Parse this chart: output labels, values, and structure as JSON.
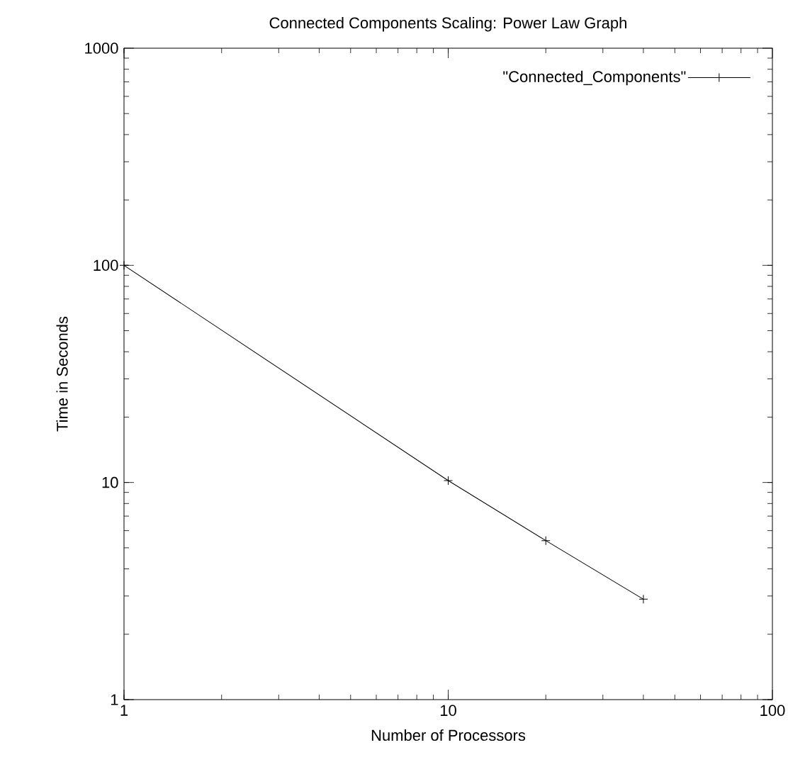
{
  "chart_data": {
    "type": "line",
    "title": "Connected Components Scaling: Power Law Graph",
    "xlabel": "Number of Processors",
    "ylabel": "Time in Seconds",
    "x": [
      1,
      10,
      20,
      40
    ],
    "series": [
      {
        "name": "\"Connected_Components\"",
        "color": "#000000",
        "values": [
          100,
          10.2,
          5.4,
          2.9
        ]
      }
    ],
    "log": "xy",
    "xlim": [
      1,
      100
    ],
    "ylim": [
      1,
      1000
    ],
    "xticks": [
      1,
      10,
      100
    ],
    "yticks": [
      1,
      10,
      100,
      1000
    ],
    "marker": "cross",
    "line_style": "solid",
    "legend": "top right"
  }
}
